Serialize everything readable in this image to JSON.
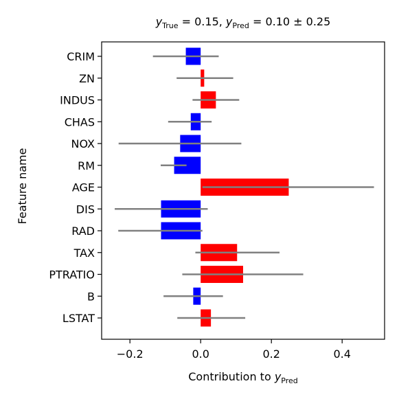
{
  "chart_data": {
    "type": "bar",
    "orientation": "horizontal",
    "title": {
      "y_true_sym": "y",
      "y_true_sub": "True",
      "y_true_text": " = 0.15, ",
      "y_pred_sym": "y",
      "y_pred_sub": "Pred",
      "y_pred_text": " = 0.10 ± 0.25"
    },
    "xlabel": {
      "text": "Contribution to ",
      "sym": "y",
      "sub": "Pred"
    },
    "ylabel": "Feature name",
    "xlim": [
      -0.28,
      0.52
    ],
    "xticks": [
      -0.2,
      0.0,
      0.2,
      0.4
    ],
    "xtick_labels": [
      "−0.2",
      "0.0",
      "0.2",
      "0.4"
    ],
    "categories": [
      "CRIM",
      "ZN",
      "INDUS",
      "CHAS",
      "NOX",
      "RM",
      "AGE",
      "DIS",
      "RAD",
      "TAX",
      "PTRATIO",
      "B",
      "LSTAT"
    ],
    "values": [
      -0.042,
      0.01,
      0.043,
      -0.028,
      -0.058,
      -0.075,
      0.249,
      -0.112,
      -0.112,
      0.103,
      0.12,
      -0.021,
      0.029
    ],
    "error_low": [
      -0.135,
      -0.068,
      -0.023,
      -0.092,
      -0.232,
      -0.113,
      0.005,
      -0.243,
      -0.233,
      -0.015,
      -0.052,
      -0.105,
      -0.066
    ],
    "error_high": [
      0.051,
      0.092,
      0.109,
      0.031,
      0.115,
      -0.04,
      0.49,
      0.02,
      0.005,
      0.223,
      0.29,
      0.063,
      0.126
    ],
    "colors": {
      "positive": "#ff0000",
      "negative": "#0000ff",
      "error": "#808080"
    },
    "grid": false,
    "legend": "none"
  }
}
